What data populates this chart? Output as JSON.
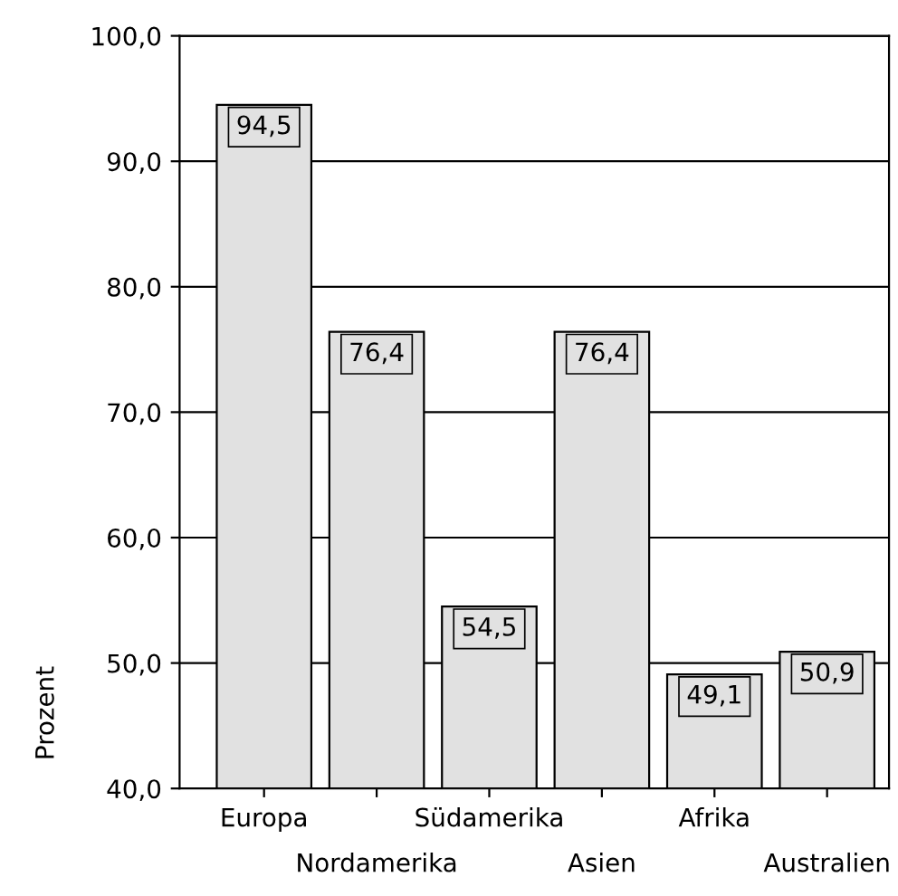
{
  "chart_data": {
    "type": "bar",
    "ylabel": "Prozent",
    "categories": [
      "Europa",
      "Nordamerika",
      "Südamerika",
      "Asien",
      "Afrika",
      "Australien"
    ],
    "values": [
      94.5,
      76.4,
      54.5,
      76.4,
      49.1,
      50.9
    ],
    "color": "#e1e1e1",
    "value_labels": [
      "94,5",
      "76,4",
      "54,5",
      "76,4",
      "49,1",
      "50,9"
    ],
    "ylim": [
      40,
      100
    ],
    "yticks": [
      {
        "value": 40,
        "label": "40,0"
      },
      {
        "value": 50,
        "label": "50,0"
      },
      {
        "value": 60,
        "label": "60,0"
      },
      {
        "value": 70,
        "label": "70,0"
      },
      {
        "value": 80,
        "label": "80,0"
      },
      {
        "value": 90,
        "label": "90,0"
      },
      {
        "value": 100,
        "label": "100,0"
      }
    ],
    "grid": "y"
  }
}
